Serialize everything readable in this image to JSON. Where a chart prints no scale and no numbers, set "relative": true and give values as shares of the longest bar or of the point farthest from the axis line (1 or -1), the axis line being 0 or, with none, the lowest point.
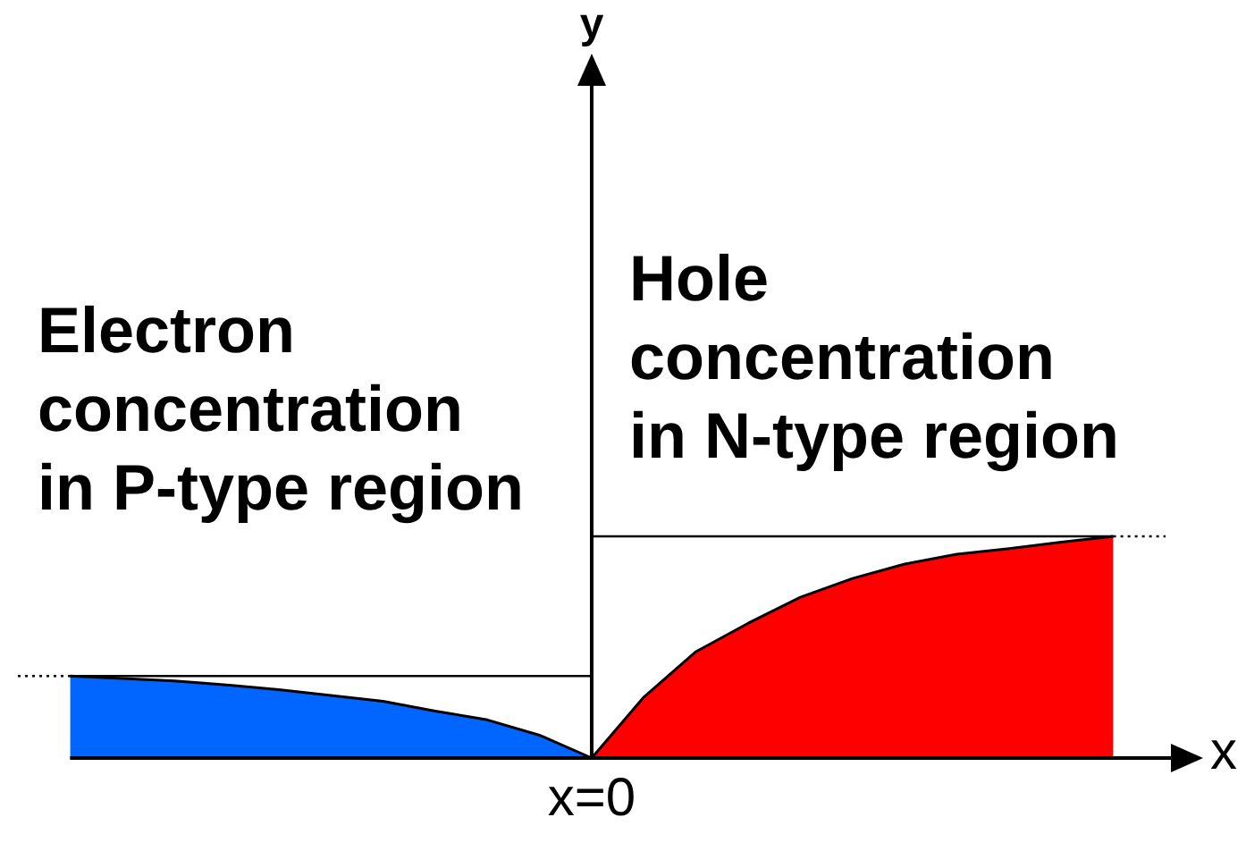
{
  "chart_data": {
    "type": "area",
    "relative": true,
    "xlabel": "x",
    "legend": false,
    "grid": false,
    "categories": [
      null,
      null,
      null,
      null,
      null,
      null,
      null,
      null,
      null,
      null,
      null,
      null,
      null,
      null,
      null,
      null,
      null,
      null,
      null,
      null,
      null,
      null,
      null
    ],
    "annotations": [
      "Electron concentration in P-type region",
      "Hole concentration in N-type region",
      "x=0",
      "y"
    ],
    "series": [
      {
        "type": "area",
        "color": "#0066ff",
        "values": [
          null,
          0.37,
          0.359,
          0.348,
          0.33,
          0.308,
          0.282,
          0.256,
          0.212,
          0.172,
          0.103,
          0,
          null,
          null,
          null,
          null,
          null,
          null,
          null,
          null,
          null,
          null,
          null
        ]
      },
      {
        "type": "area",
        "color": "#ff0000",
        "values": [
          null,
          null,
          null,
          null,
          null,
          null,
          null,
          null,
          null,
          null,
          null,
          0,
          0.275,
          0.48,
          0.608,
          0.725,
          0.81,
          0.875,
          0.919,
          0.945,
          0.974,
          1,
          null
        ]
      },
      {
        "type": "line",
        "color": "#000000",
        "values": [
          null,
          0.37,
          0.37,
          0.37,
          0.37,
          0.37,
          0.37,
          0.37,
          0.37,
          0.37,
          0.37,
          0.37,
          null,
          null,
          null,
          null,
          null,
          null,
          null,
          null,
          null,
          null,
          null
        ]
      },
      {
        "type": "line",
        "color": "#000000",
        "line_style": "dotted",
        "values": [
          0.37,
          0.37,
          null,
          null,
          null,
          null,
          null,
          null,
          null,
          null,
          null,
          null,
          null,
          null,
          null,
          null,
          null,
          null,
          null,
          null,
          null,
          null,
          null
        ]
      },
      {
        "type": "line",
        "color": "#000000",
        "values": [
          null,
          null,
          null,
          null,
          null,
          null,
          null,
          null,
          null,
          null,
          null,
          1,
          1,
          1,
          1,
          1,
          1,
          1,
          1,
          1,
          1,
          1,
          null
        ]
      },
      {
        "type": "line",
        "color": "#000000",
        "line_style": "dotted",
        "values": [
          null,
          null,
          null,
          null,
          null,
          null,
          null,
          null,
          null,
          null,
          null,
          null,
          null,
          null,
          null,
          null,
          null,
          null,
          null,
          null,
          null,
          1,
          1
        ]
      }
    ]
  }
}
